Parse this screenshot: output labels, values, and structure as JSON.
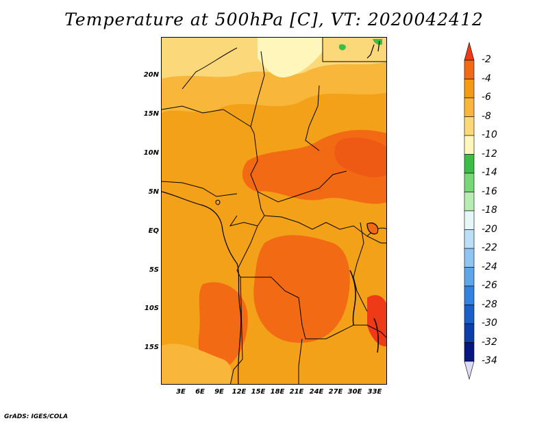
{
  "title": "Temperature at 500hPa [C], VT: 2020042412",
  "footer": "GrADS: IGES/COLA",
  "map": {
    "variable": "Temperature",
    "level": "500hPa",
    "units": "C",
    "valid_time": "2020042412",
    "lat_ticks": [
      "20N",
      "15N",
      "10N",
      "5N",
      "EQ",
      "5S",
      "10S",
      "15S"
    ],
    "lon_ticks": [
      "3E",
      "6E",
      "9E",
      "12E",
      "15E",
      "18E",
      "21E",
      "24E",
      "27E",
      "30E",
      "33E"
    ]
  },
  "colorbar": {
    "labels": [
      "-2",
      "-4",
      "-6",
      "-8",
      "-10",
      "-12",
      "-14",
      "-16",
      "-18",
      "-20",
      "-22",
      "-24",
      "-26",
      "-28",
      "-30",
      "-32",
      "-34"
    ],
    "colors": [
      "#ee3a16",
      "#f26a13",
      "#f49a14",
      "#f8b73a",
      "#fbd87a",
      "#fff6bc",
      "#3cbd46",
      "#79d779",
      "#b6edb2",
      "#e5f7f7",
      "#bcdff7",
      "#8ec5f2",
      "#5ea6ea",
      "#3282e0",
      "#1a5fca",
      "#0b3ea8",
      "#081680",
      "#dcdcf5"
    ]
  },
  "field_colors": {
    "base": "#f4a11a",
    "warm": "#f26a13",
    "warmer": "#ee5a14",
    "cool": "#f8b73a",
    "cooler": "#fbd87a",
    "coolest": "#fff6bc",
    "green": "#3cbd46"
  }
}
